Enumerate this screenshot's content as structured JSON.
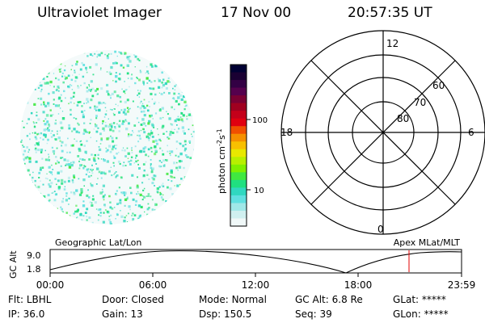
{
  "header": {
    "instrument": "Ultraviolet Imager",
    "date": "17 Nov 00",
    "time": "20:57:35 UT"
  },
  "colorbar": {
    "unit_label": "photon cm",
    "unit_exp1": "-2",
    "unit_mid": "s",
    "unit_exp2": "-1",
    "tick_100": "100",
    "tick_10": "10",
    "colors": [
      "#000033",
      "#1a0033",
      "#330044",
      "#55004d",
      "#7a0033",
      "#a00020",
      "#c4001a",
      "#e00010",
      "#f05000",
      "#f59000",
      "#f8c000",
      "#e8e800",
      "#b8f000",
      "#80f000",
      "#40e840",
      "#20e080",
      "#30d8c0",
      "#60e0e0",
      "#a0e8e8",
      "#d0f0f0",
      "#f0f8f8"
    ]
  },
  "polar_plot": {
    "label_top": "12",
    "label_left": "18",
    "label_right": "6",
    "label_bottom": "0",
    "label_60": "60",
    "label_70": "70",
    "label_80": "80"
  },
  "altitude_plot": {
    "y_label": "GC Alt",
    "y_max": "9.0",
    "y_min": "1.8",
    "left_caption": "Geographic Lat/Lon",
    "right_caption": "Apex MLat/MLT",
    "x_ticks": [
      "00:00",
      "06:00",
      "12:00",
      "18:00",
      "23:59"
    ],
    "marker_time": "20:57"
  },
  "status": {
    "row1": [
      {
        "key": "Flt:",
        "value": "LBHL"
      },
      {
        "key": "Door:",
        "value": "Closed"
      },
      {
        "key": "Mode:",
        "value": "Normal"
      },
      {
        "key": "GC Alt:",
        "value": "6.8 Re"
      },
      {
        "key": "GLat:",
        "value": "*****"
      }
    ],
    "row2": [
      {
        "key": "IP:",
        "value": "36.0"
      },
      {
        "key": "Gain:",
        "value": "13"
      },
      {
        "key": "Dsp:",
        "value": "150.5"
      },
      {
        "key": "Seq:",
        "value": "39"
      },
      {
        "key": "GLon:",
        "value": "*****"
      }
    ]
  }
}
